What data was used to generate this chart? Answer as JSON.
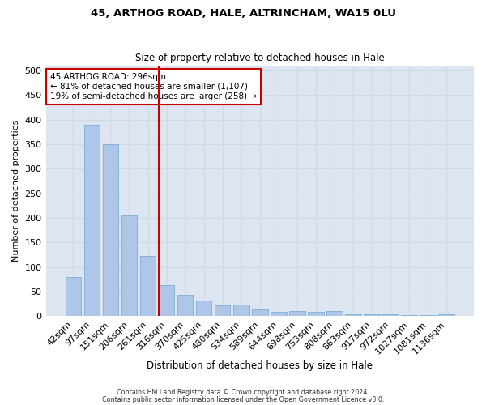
{
  "title1": "45, ARTHOG ROAD, HALE, ALTRINCHAM, WA15 0LU",
  "title2": "Size of property relative to detached houses in Hale",
  "xlabel": "Distribution of detached houses by size in Hale",
  "ylabel": "Number of detached properties",
  "categories": [
    "42sqm",
    "97sqm",
    "151sqm",
    "206sqm",
    "261sqm",
    "316sqm",
    "370sqm",
    "425sqm",
    "480sqm",
    "534sqm",
    "589sqm",
    "644sqm",
    "698sqm",
    "753sqm",
    "808sqm",
    "863sqm",
    "917sqm",
    "972sqm",
    "1027sqm",
    "1081sqm",
    "1136sqm"
  ],
  "values": [
    80,
    390,
    350,
    205,
    122,
    63,
    44,
    32,
    22,
    24,
    14,
    8,
    10,
    8,
    10,
    4,
    3,
    3,
    2,
    2,
    4
  ],
  "bar_color": "#aec6e8",
  "bar_edge_color": "#7aafd4",
  "grid_color": "#d0d8e4",
  "background_color": "#dde6f0",
  "vline_color": "#cc0000",
  "annotation_text": "45 ARTHOG ROAD: 296sqm\n← 81% of detached houses are smaller (1,107)\n19% of semi-detached houses are larger (258) →",
  "annotation_box_color": "#ffffff",
  "annotation_box_edge": "#cc0000",
  "footer1": "Contains HM Land Registry data © Crown copyright and database right 2024.",
  "footer2": "Contains public sector information licensed under the Open Government Licence v3.0.",
  "ylim": [
    0,
    510
  ],
  "yticks": [
    0,
    50,
    100,
    150,
    200,
    250,
    300,
    350,
    400,
    450,
    500
  ]
}
